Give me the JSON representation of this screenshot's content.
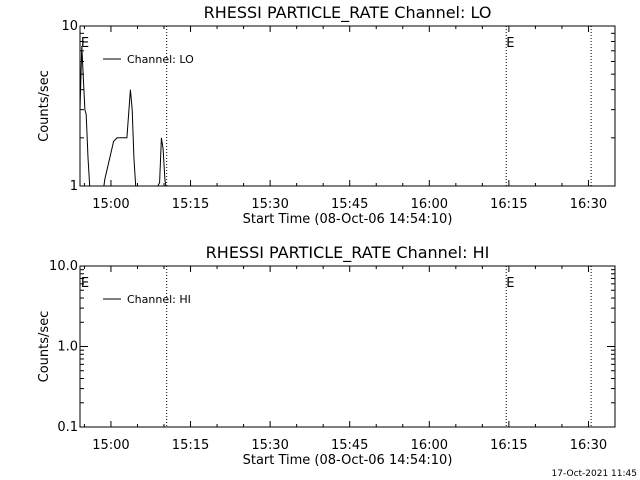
{
  "footer_timestamp": "17-Oct-2021 11:45",
  "chart_data": [
    {
      "type": "line",
      "title": "RHESSI PARTICLE_RATE Channel: LO",
      "xlabel": "Start Time (08-Oct-06 14:54:10)",
      "ylabel": "Counts/sec",
      "yscale": "log",
      "xlim": [
        "14:54:10",
        "16:35:00"
      ],
      "ylim": [
        1,
        10
      ],
      "x_ticks": [
        "15:00",
        "15:15",
        "15:30",
        "15:45",
        "16:00",
        "16:15",
        "16:30"
      ],
      "y_ticks": [
        "1",
        "10"
      ],
      "legend": {
        "placement": "top-left",
        "label": "Channel: LO"
      },
      "vlines": [
        "15:10:30",
        "16:14:30",
        "16:30:30"
      ],
      "flags": [
        {
          "label": "E",
          "x": "14:54:20"
        },
        {
          "label": "E",
          "x": "16:14:30"
        }
      ],
      "series": [
        {
          "name": "Channel: LO",
          "x": [
            "14:54:10",
            "14:54:30",
            "14:54:50",
            "14:55:05",
            "14:55:20",
            "14:55:40",
            "14:56:00",
            "14:56:10",
            "14:58:40",
            "14:58:50",
            "15:00:30",
            "15:01:10",
            "15:01:20",
            "15:03:00",
            "15:03:20",
            "15:03:40",
            "15:04:00",
            "15:04:20",
            "15:04:40",
            "15:05:10",
            "15:08:50",
            "15:09:10",
            "15:09:30",
            "15:09:50",
            "15:10:10",
            "15:10:20",
            "15:10:30"
          ],
          "y": [
            3.0,
            7.5,
            4.5,
            3.0,
            2.8,
            1.5,
            1.0,
            1.0,
            1.0,
            1.1,
            1.9,
            2.0,
            2.0,
            2.0,
            2.8,
            4.0,
            3.0,
            1.5,
            1.0,
            1.0,
            1.0,
            1.05,
            2.0,
            1.7,
            1.1,
            1.0,
            1.0
          ]
        }
      ]
    },
    {
      "type": "line",
      "title": "RHESSI PARTICLE_RATE Channel: HI",
      "xlabel": "Start Time (08-Oct-06 14:54:10)",
      "ylabel": "Counts/sec",
      "yscale": "log",
      "xlim": [
        "14:54:10",
        "16:35:00"
      ],
      "ylim": [
        0.1,
        10
      ],
      "x_ticks": [
        "15:00",
        "15:15",
        "15:30",
        "15:45",
        "16:00",
        "16:15",
        "16:30"
      ],
      "y_ticks": [
        "0.1",
        "1.0",
        "10.0"
      ],
      "legend": {
        "placement": "top-left",
        "label": "Channel: HI"
      },
      "vlines": [
        "15:10:30",
        "16:14:30",
        "16:30:30"
      ],
      "flags": [
        {
          "label": "E",
          "x": "14:54:20"
        },
        {
          "label": "E",
          "x": "16:14:30"
        }
      ],
      "series": [
        {
          "name": "Channel: HI",
          "x": [],
          "y": []
        }
      ]
    }
  ]
}
